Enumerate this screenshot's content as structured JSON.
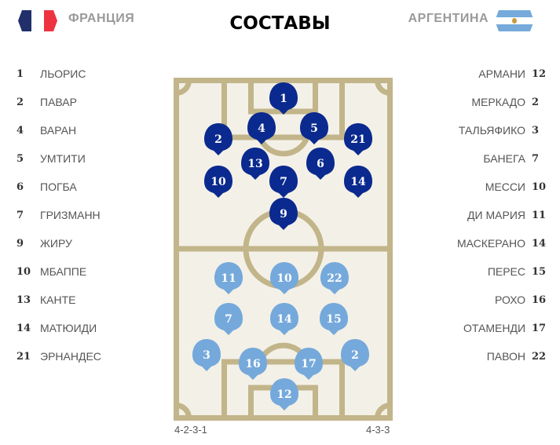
{
  "header": {
    "title": "СОСТАВЫ"
  },
  "home": {
    "name": "ФРАНЦИЯ",
    "flag_colors": [
      "#21306b",
      "#ffffff",
      "#ee3340"
    ],
    "formation": "4-2-3-1",
    "marker_color": "#0b2a8f",
    "players": [
      {
        "number": "1",
        "name": "ЛЬОРИС"
      },
      {
        "number": "2",
        "name": "ПАВАР"
      },
      {
        "number": "4",
        "name": "ВАРАН"
      },
      {
        "number": "5",
        "name": "УМТИТИ"
      },
      {
        "number": "6",
        "name": "ПОГБА"
      },
      {
        "number": "7",
        "name": "ГРИЗМАНН"
      },
      {
        "number": "9",
        "name": "ЖИРУ"
      },
      {
        "number": "10",
        "name": "МБАППЕ"
      },
      {
        "number": "13",
        "name": "КАНТЕ"
      },
      {
        "number": "14",
        "name": "МАТЮИДИ"
      },
      {
        "number": "21",
        "name": "ЭРНАНДЕС"
      }
    ]
  },
  "away": {
    "name": "АРГЕНТИНА",
    "flag_colors": [
      "#75aadb",
      "#ffffff"
    ],
    "formation": "4-3-3",
    "marker_color": "#75a9db",
    "players": [
      {
        "number": "12",
        "name": "АРМАНИ"
      },
      {
        "number": "2",
        "name": "МЕРКАДО"
      },
      {
        "number": "3",
        "name": "ТАЛЬЯФИКО"
      },
      {
        "number": "7",
        "name": "БАНЕГА"
      },
      {
        "number": "10",
        "name": "МЕССИ"
      },
      {
        "number": "11",
        "name": "ДИ МАРИЯ"
      },
      {
        "number": "14",
        "name": "МАСКЕРАНО"
      },
      {
        "number": "15",
        "name": "ПЕРЕС"
      },
      {
        "number": "16",
        "name": "РОХО"
      },
      {
        "number": "17",
        "name": "ОТАМЕНДИ"
      },
      {
        "number": "22",
        "name": "ПАВОН"
      }
    ]
  },
  "pitch": {
    "background": "#f3f0e7",
    "line_color": "#c2b58a"
  }
}
